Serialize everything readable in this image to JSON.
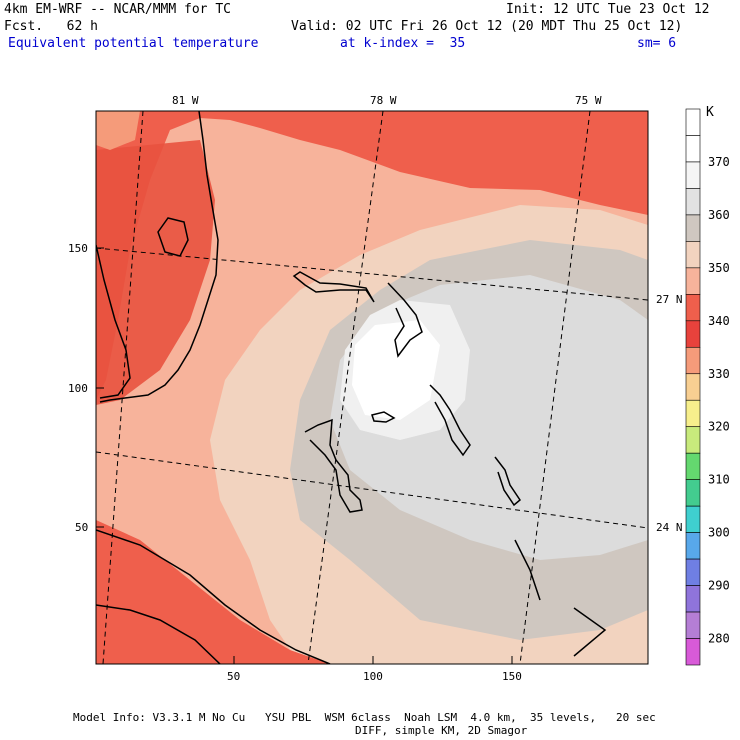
{
  "header": {
    "model": "4km EM-WRF -- NCAR/MMM for TC",
    "fcst": "Fcst.   62 h",
    "init": "Init: 12 UTC Tue 23 Oct 12",
    "valid": "Valid: 02 UTC Fri 26 Oct 12 (20 MDT Thu 25 Oct 12)",
    "field": "Equivalent potential temperature",
    "level": "at k-index =  35",
    "smooth": "sm= 6"
  },
  "colorbar": {
    "unit": "K",
    "levels": [
      {
        "label": "",
        "color": "#ffffff"
      },
      {
        "label": "370",
        "color": "#ffffff"
      },
      {
        "label": "",
        "color": "#f5f5f5"
      },
      {
        "label": "360",
        "color": "#e2e2e2"
      },
      {
        "label": "",
        "color": "#cfc7c0"
      },
      {
        "label": "350",
        "color": "#f2d3bf"
      },
      {
        "label": "",
        "color": "#f7b39b"
      },
      {
        "label": "340",
        "color": "#ef5f4c"
      },
      {
        "label": "",
        "color": "#e8423c"
      },
      {
        "label": "330",
        "color": "#f59b7a"
      },
      {
        "label": "",
        "color": "#f8cf92"
      },
      {
        "label": "320",
        "color": "#f7ef8c"
      },
      {
        "label": "",
        "color": "#c8ea7c"
      },
      {
        "label": "310",
        "color": "#64d86f"
      },
      {
        "label": "",
        "color": "#43cc8f"
      },
      {
        "label": "300",
        "color": "#3fcfcf"
      },
      {
        "label": "",
        "color": "#58a8ea"
      },
      {
        "label": "290",
        "color": "#6f7fe3"
      },
      {
        "label": "",
        "color": "#8f74db"
      },
      {
        "label": "280",
        "color": "#b57ed5"
      },
      {
        "label": "",
        "color": "#d85ad8"
      }
    ]
  },
  "map": {
    "top_labels": [
      "81 W",
      "78 W",
      "75 W"
    ],
    "right_labels": [
      "27 N",
      "24 N"
    ],
    "y_ticks": [
      "150",
      "100",
      "50"
    ],
    "x_ticks": [
      "50",
      "100",
      "150"
    ]
  },
  "footer": {
    "line1": "Model Info: V3.3.1 M No Cu   YSU PBL  WSM 6class  Noah LSM  4.0 km,  35 levels,   20 sec",
    "line2": "DIFF, simple KM, 2D Smagor"
  },
  "chart_data": {
    "type": "heatmap",
    "title": "Equivalent potential temperature",
    "unit": "K",
    "color_levels": [
      280,
      290,
      300,
      310,
      320,
      330,
      340,
      350,
      360,
      370
    ],
    "x_ticks": [
      50,
      100,
      150
    ],
    "y_ticks": [
      50,
      100,
      150
    ],
    "longitude_labels": [
      "81 W",
      "78 W",
      "75 W"
    ],
    "latitude_labels": [
      "27 N",
      "24 N"
    ],
    "grid": true
  }
}
